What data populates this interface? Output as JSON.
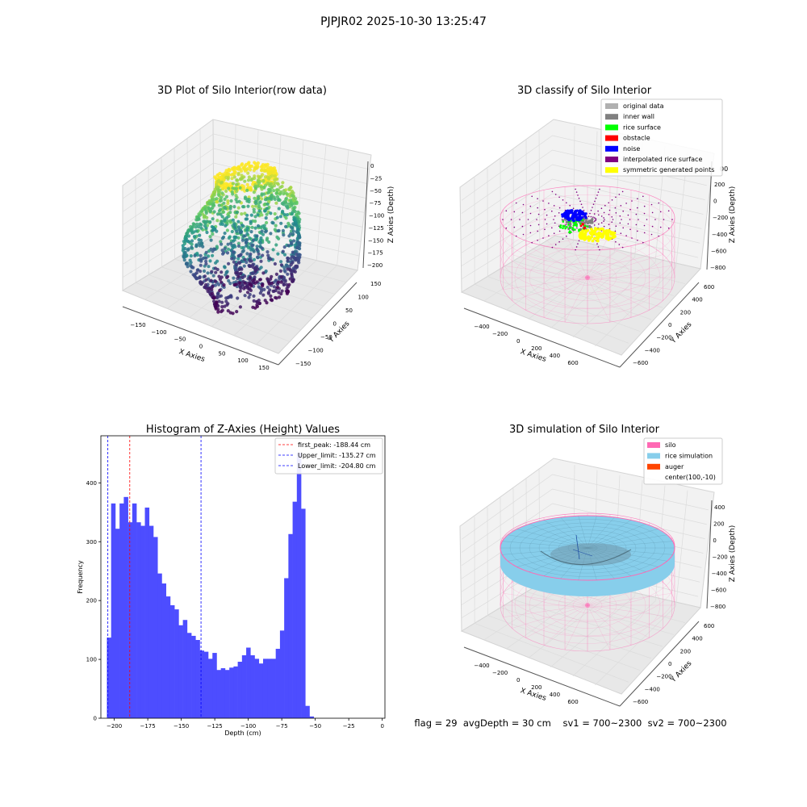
{
  "figure": {
    "suptitle": "PJPJR02 2025-10-30 13:25:47",
    "footer": "flag = 29  avgDepth = 30 cm    sv1 = 700~2300  sv2 = 700~2300"
  },
  "panels": {
    "raw": {
      "title": "3D Plot of Silo Interior(row data)",
      "xlabel": "X Axies",
      "ylabel": "Y Axies",
      "zlabel": "Z Axies (Depth)",
      "xticks": [
        "−150",
        "−100",
        "−50",
        "0",
        "50",
        "100",
        "150"
      ],
      "yticks": [
        "150",
        "100",
        "50",
        "0",
        "−50",
        "−100",
        "−150"
      ],
      "zticks": [
        "0",
        "−25",
        "−50",
        "−75",
        "−100",
        "−125",
        "−150",
        "−175",
        "−200"
      ]
    },
    "classify": {
      "title": "3D classify of Silo Interior",
      "xlabel": "X Axies",
      "ylabel": "Y Axies",
      "zlabel": "Z Axies (Depth)",
      "xticks": [
        "−400",
        "−200",
        "0",
        "200",
        "400",
        "600"
      ],
      "yticks": [
        "600",
        "400",
        "200",
        "0",
        "−200",
        "−400",
        "−600"
      ],
      "zticks": [
        "200",
        "0",
        "−200",
        "−400",
        "−600",
        "−800"
      ],
      "ztop_partial": "00",
      "legend": [
        {
          "label": "original data",
          "color": "#b0b0b0"
        },
        {
          "label": "inner wall",
          "color": "#808080"
        },
        {
          "label": "rice surface",
          "color": "#00ff00"
        },
        {
          "label": "obstacle",
          "color": "#ff0000"
        },
        {
          "label": "noise",
          "color": "#0000ff"
        },
        {
          "label": "interpolated rice surface",
          "color": "#800080"
        },
        {
          "label": "symmetric generated points",
          "color": "#ffff00"
        }
      ]
    },
    "simulation": {
      "title": "3D simulation of Silo Interior",
      "xlabel": "X Axies",
      "ylabel": "Y Axies",
      "zlabel": "Z Axies (Depth)",
      "xticks": [
        "−400",
        "−200",
        "0",
        "200",
        "400",
        "600"
      ],
      "yticks": [
        "600",
        "400",
        "200",
        "0",
        "−200",
        "−400",
        "−600"
      ],
      "zticks": [
        "400",
        "200",
        "0",
        "−200",
        "−400",
        "−600",
        "−800"
      ],
      "legend": [
        {
          "label": "silo",
          "color": "#ff69b4"
        },
        {
          "label": "rice simulation",
          "color": "#87ceeb"
        },
        {
          "label": "auger",
          "color": "#ff4500"
        },
        {
          "label": "center(100,-10)",
          "color": ""
        }
      ]
    }
  },
  "colors": {
    "hist_bar": "#4d4dff",
    "peak_line": "#ff0000",
    "limit_line": "#0000ff",
    "silo_wire": "#ff69b4",
    "rice": "#87ceeb"
  },
  "chart_data": {
    "type": "bar",
    "title": "Histogram of Z-Axies (Height) Values",
    "xlabel": "Depth (cm)",
    "ylabel": "Frequency",
    "xlim": [
      -210,
      2
    ],
    "ylim": [
      0,
      480
    ],
    "xticks": [
      -200,
      -175,
      -150,
      -125,
      -100,
      -75,
      -50,
      -25,
      0
    ],
    "xtick_labels": [
      "−200",
      "−175",
      "−150",
      "−125",
      "−100",
      "−75",
      "−50",
      "−25",
      "0"
    ],
    "yticks": [
      0,
      100,
      200,
      300,
      400
    ],
    "bin_start": -205.5,
    "bin_width": 3.15,
    "values": [
      137,
      365,
      322,
      365,
      376,
      333,
      365,
      333,
      327,
      358,
      327,
      308,
      246,
      229,
      207,
      192,
      185,
      158,
      167,
      145,
      140,
      133,
      115,
      113,
      101,
      111,
      82,
      85,
      82,
      86,
      88,
      96,
      107,
      120,
      107,
      101,
      93,
      101,
      101,
      101,
      118,
      149,
      238,
      313,
      368,
      451,
      356,
      21,
      3
    ],
    "vlines": [
      {
        "label": "first_peak: -188.44 cm",
        "x": -188.44,
        "color": "#ff0000"
      },
      {
        "label": "Upper_limit: -135.27 cm",
        "x": -135.27,
        "color": "#0000ff"
      },
      {
        "label": "Lower_limit: -204.80 cm",
        "x": -204.8,
        "color": "#0000ff"
      }
    ],
    "grid": false,
    "legend_position": "top-right"
  }
}
